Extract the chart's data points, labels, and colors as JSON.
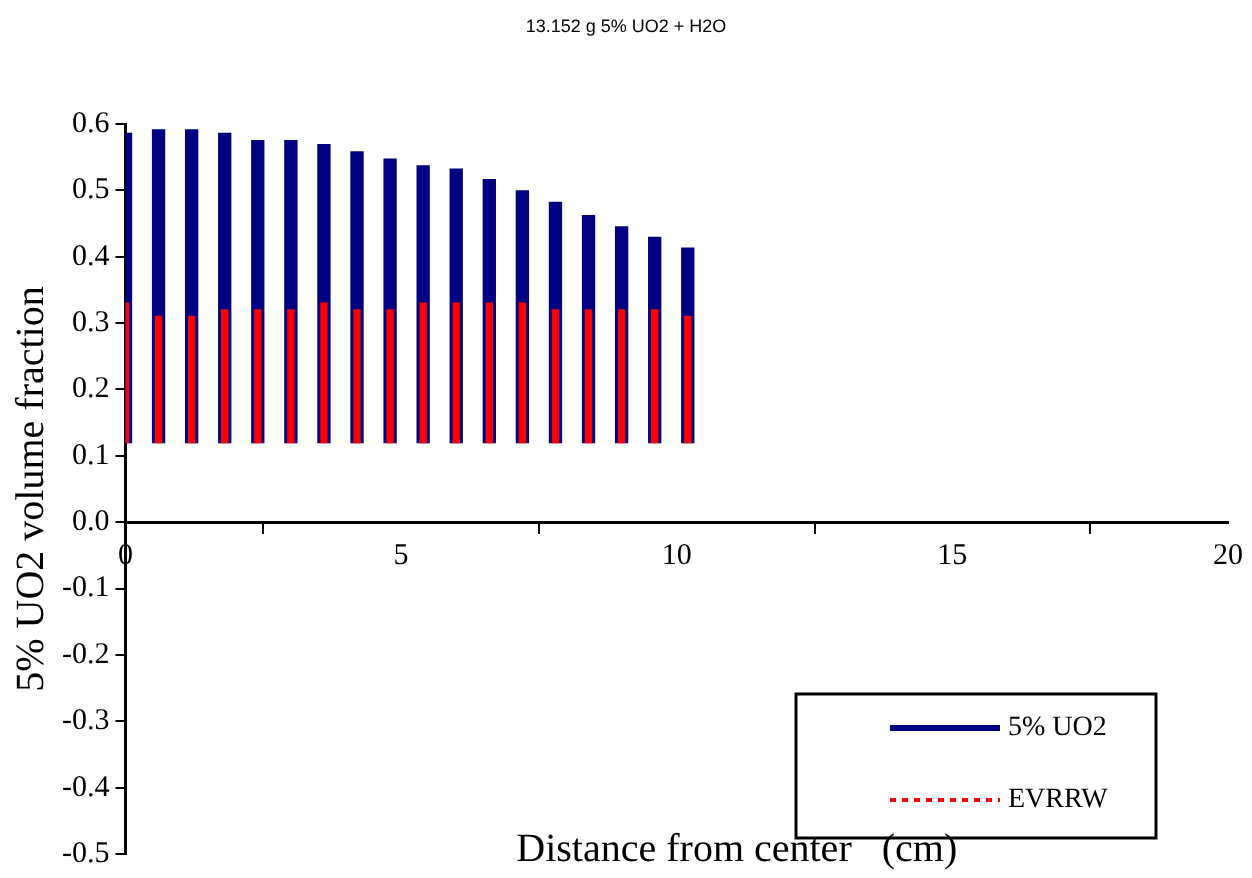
{
  "chart_data": {
    "type": "bar",
    "title": "13.152 g 5% UO2 + H2O",
    "xlabel": "Distance from center   (cm)",
    "ylabel": "5% UO2 volume fraction",
    "x": [
      0,
      0.6,
      1.2,
      1.8,
      2.4,
      3.0,
      3.6,
      4.2,
      4.8,
      5.4,
      6.0,
      6.6,
      7.2,
      7.8,
      8.4,
      9.0,
      9.6,
      10.2
    ],
    "series": [
      {
        "name": "5% UO2",
        "color": "#000080",
        "line_style": "solid",
        "base": [
          0.12,
          0.12,
          0.12,
          0.12,
          0.12,
          0.12,
          0.12,
          0.12,
          0.12,
          0.12,
          0.12,
          0.12,
          0.12,
          0.12,
          0.12,
          0.12,
          0.12,
          0.12
        ],
        "values": [
          0.466,
          0.471,
          0.471,
          0.466,
          0.455,
          0.455,
          0.449,
          0.438,
          0.427,
          0.417,
          0.412,
          0.396,
          0.379,
          0.362,
          0.342,
          0.325,
          0.309,
          0.293
        ]
      },
      {
        "name": "EVRRW",
        "color": "#ff0000",
        "line_style": "dotted",
        "base": [
          0.12,
          0.12,
          0.12,
          0.12,
          0.12,
          0.12,
          0.12,
          0.12,
          0.12,
          0.12,
          0.12,
          0.12,
          0.12,
          0.12,
          0.12,
          0.12,
          0.12,
          0.12
        ],
        "values": [
          0.21,
          0.19,
          0.19,
          0.2,
          0.2,
          0.2,
          0.21,
          0.2,
          0.2,
          0.21,
          0.21,
          0.21,
          0.21,
          0.2,
          0.2,
          0.2,
          0.2,
          0.19
        ]
      }
    ],
    "xlim": [
      0,
      20
    ],
    "xticks": [
      0,
      5,
      10,
      15,
      20
    ],
    "ylim": [
      -0.5,
      0.6
    ],
    "yticks": [
      {
        "value": -0.5,
        "label": "-0.5"
      },
      {
        "value": -0.4,
        "label": "-0.4"
      },
      {
        "value": -0.3,
        "label": "-0.3"
      },
      {
        "value": -0.2,
        "label": "-0.2"
      },
      {
        "value": -0.1,
        "label": "-0.1"
      },
      {
        "value": 0,
        "label": "0.0"
      },
      0.1,
      0.2,
      0.3,
      0.4,
      0.5,
      0.6
    ],
    "grid": false,
    "legend": "bottom right"
  }
}
